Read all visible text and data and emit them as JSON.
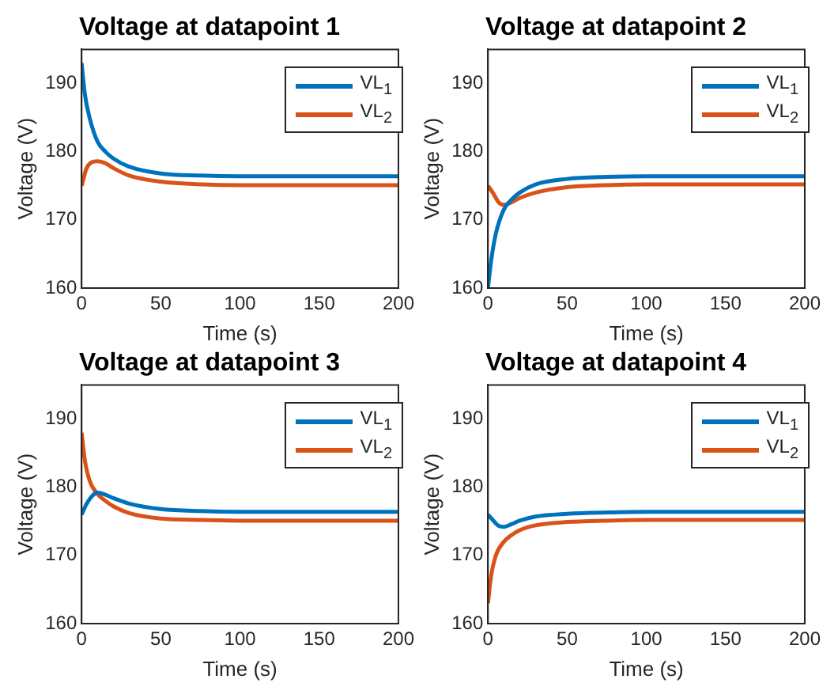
{
  "chart_data": [
    {
      "type": "line",
      "title": "Voltage at datapoint 1",
      "xlabel": "Time (s)",
      "ylabel": "Voltage (V)",
      "xlim": [
        0,
        200
      ],
      "xticks": [
        0,
        50,
        100,
        150,
        200
      ],
      "ylim": [
        160,
        195
      ],
      "yticks": [
        160,
        170,
        180,
        190
      ],
      "grid": false,
      "legend": "top right",
      "series": [
        {
          "name": "VL$_{1}$",
          "color": "#0072bd",
          "x": [
            0,
            2,
            5,
            10,
            15,
            20,
            30,
            50,
            75,
            100,
            150,
            200
          ],
          "values": [
            193,
            188.5,
            185,
            181.5,
            180,
            179,
            177.8,
            176.8,
            176.5,
            176.4,
            176.4,
            176.4
          ]
        },
        {
          "name": "VL$_{2}$",
          "color": "#d95319",
          "x": [
            0,
            3,
            6,
            10,
            15,
            20,
            30,
            50,
            75,
            100,
            150,
            200
          ],
          "values": [
            175,
            177.5,
            178.4,
            178.6,
            178.3,
            177.6,
            176.5,
            175.6,
            175.2,
            175.1,
            175.1,
            175.1
          ]
        }
      ]
    },
    {
      "type": "line",
      "title": "Voltage at datapoint 2",
      "xlabel": "Time (s)",
      "ylabel": "Voltage (V)",
      "xlim": [
        0,
        200
      ],
      "xticks": [
        0,
        50,
        100,
        150,
        200
      ],
      "ylim": [
        160,
        195
      ],
      "yticks": [
        160,
        170,
        180,
        190
      ],
      "grid": false,
      "legend": "top right",
      "series": [
        {
          "name": "VL$_{1}$",
          "color": "#0072bd",
          "x": [
            0,
            2,
            5,
            10,
            15,
            20,
            30,
            50,
            75,
            100,
            150,
            200
          ],
          "values": [
            160,
            164,
            168,
            171.5,
            173,
            174,
            175.2,
            176,
            176.3,
            176.4,
            176.4,
            176.4
          ]
        },
        {
          "name": "VL$_{2}$",
          "color": "#d95319",
          "x": [
            0,
            3,
            7,
            10,
            15,
            20,
            30,
            50,
            75,
            100,
            150,
            200
          ],
          "values": [
            175,
            174,
            172.5,
            172.2,
            172.6,
            173.2,
            174,
            174.8,
            175.1,
            175.2,
            175.2,
            175.2
          ]
        }
      ]
    },
    {
      "type": "line",
      "title": "Voltage at datapoint 3",
      "xlabel": "Time (s)",
      "ylabel": "Voltage (V)",
      "xlim": [
        0,
        200
      ],
      "xticks": [
        0,
        50,
        100,
        150,
        200
      ],
      "ylim": [
        160,
        195
      ],
      "yticks": [
        160,
        170,
        180,
        190
      ],
      "grid": false,
      "legend": "top right",
      "series": [
        {
          "name": "VL$_{1}$",
          "color": "#0072bd",
          "x": [
            0,
            3,
            7,
            10,
            15,
            20,
            30,
            50,
            75,
            100,
            150,
            200
          ],
          "values": [
            176,
            177.5,
            178.8,
            179.2,
            178.9,
            178.4,
            177.6,
            176.8,
            176.5,
            176.4,
            176.4,
            176.4
          ]
        },
        {
          "name": "VL$_{2}$",
          "color": "#d95319",
          "x": [
            0,
            2,
            5,
            10,
            15,
            20,
            30,
            50,
            75,
            100,
            150,
            200
          ],
          "values": [
            188,
            184,
            181,
            179,
            178,
            177.2,
            176.2,
            175.4,
            175.2,
            175.1,
            175.1,
            175.1
          ]
        }
      ]
    },
    {
      "type": "line",
      "title": "Voltage at datapoint 4",
      "xlabel": "Time (s)",
      "ylabel": "Voltage (V)",
      "xlim": [
        0,
        200
      ],
      "xticks": [
        0,
        50,
        100,
        150,
        200
      ],
      "ylim": [
        160,
        195
      ],
      "yticks": [
        160,
        170,
        180,
        190
      ],
      "grid": false,
      "legend": "top right",
      "series": [
        {
          "name": "VL$_{1}$",
          "color": "#0072bd",
          "x": [
            0,
            3,
            7,
            10,
            15,
            20,
            30,
            50,
            75,
            100,
            150,
            200
          ],
          "values": [
            176,
            175.2,
            174.3,
            174.2,
            174.6,
            175.1,
            175.7,
            176.1,
            176.3,
            176.4,
            176.4,
            176.4
          ]
        },
        {
          "name": "VL$_{2}$",
          "color": "#d95319",
          "x": [
            0,
            2,
            5,
            10,
            15,
            20,
            30,
            50,
            75,
            100,
            150,
            200
          ],
          "values": [
            163,
            167,
            170,
            172,
            173,
            173.7,
            174.4,
            174.9,
            175.1,
            175.2,
            175.2,
            175.2
          ]
        }
      ]
    }
  ]
}
